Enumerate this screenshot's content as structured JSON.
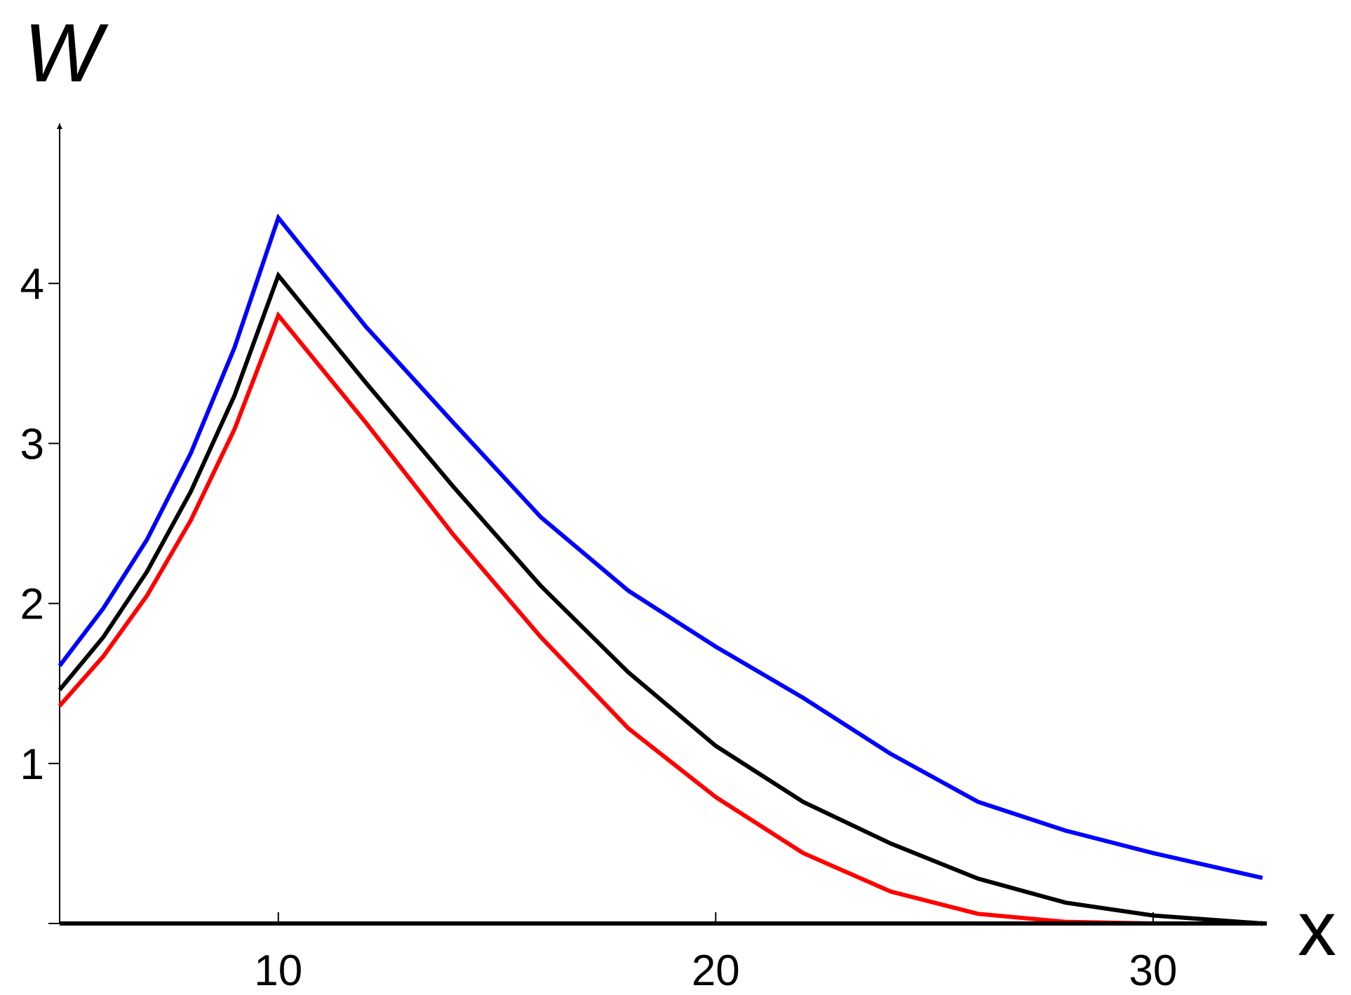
{
  "chart_data": {
    "type": "line",
    "x_label": "x",
    "y_label": "W",
    "x": [
      5,
      6,
      7,
      8,
      9,
      10,
      12,
      14,
      16,
      18,
      20,
      22,
      24,
      26,
      28,
      30,
      32.5
    ],
    "series": [
      {
        "color": "#0000ff",
        "values": [
          1.61,
          1.97,
          2.4,
          2.94,
          3.6,
          4.41,
          3.73,
          3.13,
          2.54,
          2.08,
          1.73,
          1.41,
          1.06,
          0.76,
          0.58,
          0.44,
          0.285
        ]
      },
      {
        "color": "#000000",
        "values": [
          1.46,
          1.79,
          2.2,
          2.7,
          3.3,
          4.05,
          3.38,
          2.73,
          2.11,
          1.57,
          1.11,
          0.76,
          0.5,
          0.28,
          0.13,
          0.05,
          0
        ]
      },
      {
        "color": "#ff0000",
        "values": [
          1.36,
          1.67,
          2.05,
          2.52,
          3.09,
          3.8,
          3.13,
          2.43,
          1.79,
          1.22,
          0.79,
          0.44,
          0.2,
          0.06,
          0.01,
          0,
          0
        ]
      }
    ],
    "xlim": [
      5,
      32.6
    ],
    "ylim": [
      0,
      5
    ],
    "xticks": [
      10,
      20,
      30
    ],
    "yticks": [
      1,
      2,
      3,
      4
    ]
  }
}
